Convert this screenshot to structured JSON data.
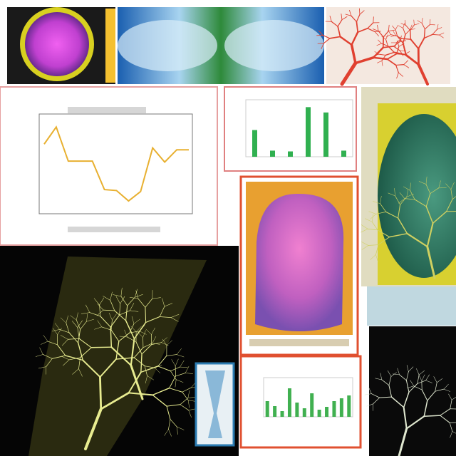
{
  "line_panel": {
    "values": [
      7.2,
      9.0,
      5.4,
      5.4,
      5.4,
      2.4,
      2.3,
      1.2,
      2.2,
      6.8,
      5.3,
      6.6,
      6.6
    ],
    "ylim": [
      0,
      10
    ]
  },
  "bar_panel_top": {
    "values": [
      3.5,
      0.8,
      0.7,
      6.5,
      5.8,
      0.8
    ],
    "ylim": [
      0,
      7
    ]
  },
  "bar_panel_bottom": {
    "values": [
      2.2,
      1.5,
      0.8,
      4.0,
      2.0,
      1.2,
      3.3,
      1.0,
      1.4,
      2.2,
      2.6,
      3.0
    ],
    "ylim": [
      0,
      5
    ]
  }
}
